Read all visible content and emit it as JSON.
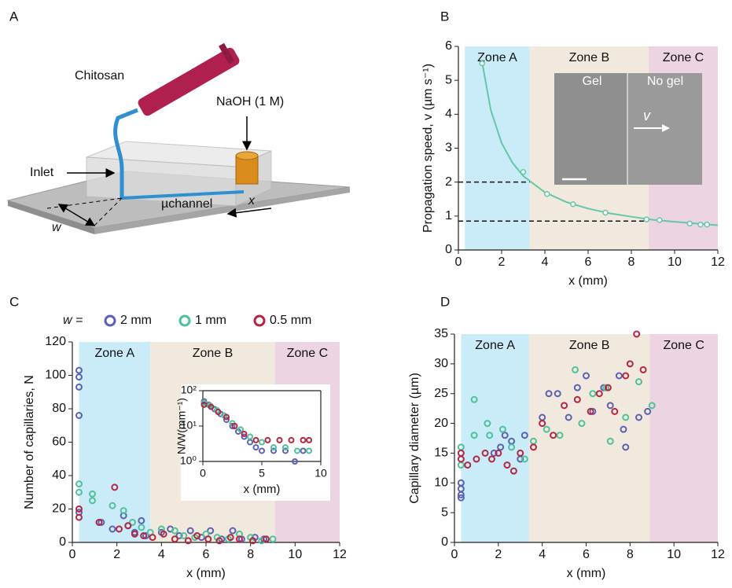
{
  "panel_a": {
    "label": "A",
    "chitosan": "Chitosan",
    "naoh": "NaOH (1 M)",
    "inlet": "Inlet",
    "channel": "µchannel",
    "x": "x",
    "w": "w"
  },
  "chart_data": [
    {
      "type": "scatter",
      "panel": "B",
      "ylabel": "Propagation speed, v (µm s⁻¹)",
      "xlabel": "x (mm)",
      "xlim": [
        0,
        12
      ],
      "ylim": [
        0,
        6
      ],
      "xticks": [
        0,
        2,
        4,
        6,
        8,
        10,
        12
      ],
      "yticks": [
        0,
        1,
        2,
        3,
        4,
        5,
        6
      ],
      "zones": [
        {
          "label": "Zone A",
          "start": 0.3,
          "end": 3.3,
          "color": "#c9ecf8"
        },
        {
          "label": "Zone B",
          "start": 3.3,
          "end": 8.8,
          "color": "#f2e9de"
        },
        {
          "label": "Zone C",
          "start": 8.8,
          "end": 12,
          "color": "#ecd4e3"
        }
      ],
      "reference_lines": [
        {
          "y": 2.0,
          "x": [
            0,
            3.3
          ]
        },
        {
          "y": 0.85,
          "x": [
            0,
            8.8
          ]
        }
      ],
      "inset_labels": {
        "gel": "Gel",
        "no_gel": "No gel",
        "v": "v"
      },
      "series": [
        {
          "mode": "line",
          "color": "#62c8a6",
          "x": [
            1.1,
            1.5,
            2,
            2.5,
            3,
            4,
            5,
            6,
            7,
            8,
            9,
            10,
            11,
            12
          ],
          "values": [
            5.52,
            4.12,
            3.15,
            2.57,
            2.18,
            1.7,
            1.41,
            1.22,
            1.08,
            0.98,
            0.89,
            0.83,
            0.78,
            0.73
          ]
        },
        {
          "mode": "markers",
          "color": "#62c8a6",
          "x": [
            1.1,
            3.0,
            4.1,
            5.3,
            6.8,
            8.7,
            9.3,
            10.7,
            11.2,
            11.5
          ],
          "values": [
            5.5,
            2.3,
            1.65,
            1.35,
            1.1,
            0.9,
            0.88,
            0.78,
            0.75,
            0.75
          ]
        }
      ]
    },
    {
      "type": "scatter",
      "panel": "C",
      "ylabel": "Number of capillaries, N",
      "xlabel": "x (mm)",
      "legend_prefix": "w =",
      "xlim": [
        0,
        12
      ],
      "ylim": [
        0,
        120
      ],
      "xticks": [
        0,
        2,
        4,
        6,
        8,
        10,
        12
      ],
      "yticks": [
        0,
        20,
        40,
        60,
        80,
        100,
        120
      ],
      "zones": [
        {
          "label": "Zone A",
          "start": 0.3,
          "end": 3.5,
          "color": "#c9ecf8"
        },
        {
          "label": "Zone B",
          "start": 3.5,
          "end": 9.1,
          "color": "#f2e9de"
        },
        {
          "label": "Zone C",
          "start": 9.1,
          "end": 12,
          "color": "#ecd4e3"
        }
      ],
      "series": [
        {
          "name": "2 mm",
          "mode": "markers",
          "color": "#5b5fb5",
          "x": [
            0.3,
            0.3,
            0.3,
            0.3,
            0.3,
            1.3,
            1.8,
            2.3,
            2.5,
            2.8,
            3.1,
            3.3,
            4.0,
            4.4,
            4.8,
            5.3,
            5.8,
            6.2,
            6.7,
            7.2,
            7.6,
            8.2,
            8.6
          ],
          "values": [
            103,
            99,
            93,
            76,
            18,
            12,
            8,
            16,
            10,
            6,
            13,
            4,
            6,
            8,
            4,
            7,
            3,
            7,
            2,
            7,
            2,
            3,
            2
          ]
        },
        {
          "name": "1 mm",
          "mode": "markers",
          "color": "#4fc19a",
          "x": [
            0.3,
            0.3,
            0.9,
            0.9,
            1.8,
            2.3,
            2.7,
            3.1,
            3.5,
            4.0,
            4.6,
            5.0,
            5.5,
            6.0,
            6.5,
            7.0,
            7.5,
            8.0,
            8.5,
            9.0
          ],
          "values": [
            35,
            30,
            29,
            25,
            22,
            19,
            12,
            9,
            6,
            8,
            7,
            4,
            3,
            5,
            3,
            2,
            5,
            3,
            1,
            2
          ]
        },
        {
          "name": "0.5 mm",
          "mode": "markers",
          "color": "#b3263f",
          "x": [
            0.3,
            0.3,
            1.2,
            1.9,
            2.1,
            2.5,
            2.8,
            3.2,
            3.6,
            4.1,
            4.6,
            5.2,
            5.6,
            6.1,
            6.6,
            7.1,
            7.5,
            8.1,
            8.7
          ],
          "values": [
            20,
            15,
            12,
            33,
            8,
            10,
            5,
            4,
            3,
            5,
            2,
            1,
            4,
            2,
            1,
            3,
            2,
            1,
            2
          ]
        }
      ],
      "inset": {
        "type": "scatter",
        "ylabel": "N/W(mm⁻¹)",
        "xlabel": "x (mm)",
        "log_y": true,
        "xlim": [
          0,
          10
        ],
        "ylim": [
          1,
          100
        ],
        "xticks": [
          0,
          5,
          10
        ],
        "yticks": [
          {
            "value": 1,
            "label": "10⁰"
          },
          {
            "value": 10,
            "label": "10¹"
          },
          {
            "value": 100,
            "label": "10²"
          }
        ],
        "series": [
          {
            "mode": "markers",
            "color": "#5b5fb5",
            "x": [
              0.1,
              0.5,
              1,
              1.5,
              2,
              2.5,
              3,
              3.5,
              4,
              4.5,
              5,
              6,
              7,
              7.8,
              8.5
            ],
            "values": [
              50,
              40,
              30,
              22,
              15,
              10,
              7,
              5,
              3.5,
              2.5,
              2,
              2,
              2,
              1,
              2
            ]
          },
          {
            "mode": "markers",
            "color": "#4fc19a",
            "x": [
              0.1,
              0.6,
              1.2,
              1.8,
              2.5,
              3.2,
              4,
              5,
              6,
              7,
              8,
              9
            ],
            "values": [
              45,
              38,
              28,
              20,
              12,
              8,
              5,
              3.5,
              2.5,
              2.5,
              2,
              2
            ]
          },
          {
            "mode": "markers",
            "color": "#b3263f",
            "x": [
              0.1,
              0.7,
              1.3,
              2,
              2.7,
              3.5,
              4.5,
              5.5,
              6.5,
              7.5,
              8.5,
              9
            ],
            "values": [
              40,
              35,
              25,
              18,
              10,
              6,
              4,
              4,
              4,
              4,
              4,
              4
            ]
          }
        ]
      }
    },
    {
      "type": "scatter",
      "panel": "D",
      "ylabel": "Capillary diameter (µm)",
      "xlabel": "x (mm)",
      "xlim": [
        0,
        12
      ],
      "ylim": [
        0,
        35
      ],
      "xticks": [
        0,
        2,
        4,
        6,
        8,
        10,
        12
      ],
      "yticks": [
        0,
        5,
        10,
        15,
        20,
        25,
        30,
        35
      ],
      "zones": [
        {
          "label": "Zone A",
          "start": 0.3,
          "end": 3.4,
          "color": "#c9ecf8"
        },
        {
          "label": "Zone B",
          "start": 3.4,
          "end": 8.9,
          "color": "#f2e9de"
        },
        {
          "label": "Zone C",
          "start": 8.9,
          "end": 12,
          "color": "#ecd4e3"
        }
      ],
      "series": [
        {
          "mode": "markers",
          "color": "#5b5fb5",
          "x": [
            0.3,
            0.3,
            0.3,
            0.3,
            1.8,
            2.1,
            2.3,
            2.6,
            3.0,
            3.2,
            4.0,
            4.3,
            4.7,
            5.2,
            5.6,
            6.0,
            6.3,
            6.8,
            7.1,
            7.5,
            7.7,
            7.8,
            8.4,
            8.8
          ],
          "values": [
            10,
            9,
            8,
            7.5,
            15,
            16,
            18,
            17,
            14,
            18,
            21,
            25,
            25,
            21,
            26,
            28,
            22,
            26,
            23,
            28,
            19,
            16,
            21,
            22
          ]
        },
        {
          "mode": "markers",
          "color": "#4fc19a",
          "x": [
            0.3,
            0.3,
            0.9,
            0.9,
            1.5,
            1.6,
            2.2,
            2.6,
            3.2,
            3.6,
            4.2,
            4.8,
            5.5,
            5.8,
            6.3,
            6.9,
            7.1,
            7.8,
            8.4,
            9.0
          ],
          "values": [
            16,
            13,
            24,
            18,
            20,
            18,
            19,
            16,
            14,
            17,
            19,
            18,
            29,
            20,
            25,
            26,
            17,
            21,
            27,
            23
          ]
        },
        {
          "mode": "markers",
          "color": "#b3263f",
          "x": [
            0.3,
            0.3,
            0.6,
            1.0,
            1.4,
            1.7,
            2.0,
            2.4,
            2.7,
            3.0,
            3.6,
            4.0,
            4.5,
            5.0,
            5.6,
            6.2,
            6.6,
            7.0,
            7.3,
            7.8,
            8.0,
            8.3,
            8.6
          ],
          "values": [
            15,
            14,
            13,
            14,
            15,
            14,
            15,
            13,
            12,
            15,
            16,
            20,
            18,
            23,
            24,
            22,
            25,
            26,
            22,
            28,
            30,
            35,
            29
          ]
        }
      ]
    }
  ]
}
